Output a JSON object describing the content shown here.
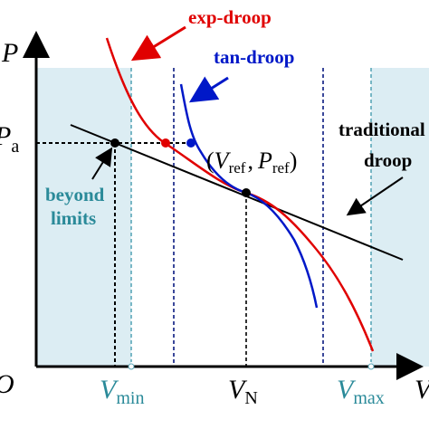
{
  "axes": {
    "y": {
      "main": "P"
    },
    "x": {
      "main": "V"
    },
    "origin": "O",
    "pa": {
      "main": "P",
      "sub": "a"
    },
    "vmin": {
      "main": "V",
      "sub": "min"
    },
    "vn": {
      "main": "V",
      "sub": "N"
    },
    "vmax": {
      "main": "V",
      "sub": "max"
    }
  },
  "curves": {
    "exp": "exp-droop",
    "tan": "tan-droop",
    "trad": [
      "traditional",
      "droop"
    ]
  },
  "point": {
    "open": "(",
    "v": "V",
    "vsub": "ref",
    "comma": ",",
    "p": "P",
    "psub": "ref",
    "close": ")"
  },
  "note": [
    "beyond",
    "limits"
  ]
}
